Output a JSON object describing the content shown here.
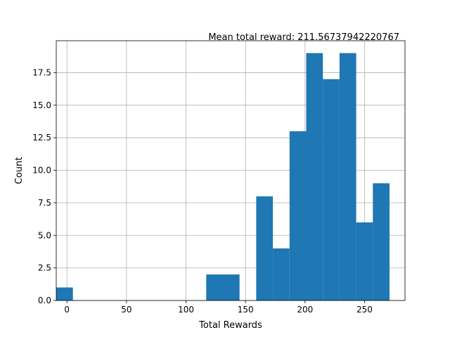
{
  "chart_data": {
    "type": "bar",
    "title": "Mean total reward: 211.56737942220767",
    "xlabel": "Total Rewards",
    "ylabel": "Count",
    "xlim": [
      -9.0,
      284.0
    ],
    "ylim": [
      0,
      19.95
    ],
    "xticks": [
      0,
      50,
      100,
      150,
      200,
      250
    ],
    "yticks": [
      0.0,
      2.5,
      5.0,
      7.5,
      10.0,
      12.5,
      15.0,
      17.5
    ],
    "grid": true,
    "bar_color": "#1f77b4",
    "bins": [
      {
        "x0": -9.0,
        "x1": 5.0,
        "count": 1
      },
      {
        "x0": 5.0,
        "x1": 19.0,
        "count": 0
      },
      {
        "x0": 19.0,
        "x1": 33.0,
        "count": 0
      },
      {
        "x0": 33.0,
        "x1": 47.0,
        "count": 0
      },
      {
        "x0": 47.0,
        "x1": 61.0,
        "count": 0
      },
      {
        "x0": 61.0,
        "x1": 75.0,
        "count": 0
      },
      {
        "x0": 75.0,
        "x1": 89.0,
        "count": 0
      },
      {
        "x0": 89.0,
        "x1": 103.0,
        "count": 0
      },
      {
        "x0": 103.0,
        "x1": 117.0,
        "count": 0
      },
      {
        "x0": 117.0,
        "x1": 131.0,
        "count": 2
      },
      {
        "x0": 131.0,
        "x1": 145.0,
        "count": 2
      },
      {
        "x0": 145.0,
        "x1": 159.0,
        "count": 0
      },
      {
        "x0": 159.0,
        "x1": 173.0,
        "count": 8
      },
      {
        "x0": 173.0,
        "x1": 187.0,
        "count": 4
      },
      {
        "x0": 187.0,
        "x1": 201.0,
        "count": 13
      },
      {
        "x0": 201.0,
        "x1": 215.0,
        "count": 19
      },
      {
        "x0": 215.0,
        "x1": 229.0,
        "count": 17
      },
      {
        "x0": 229.0,
        "x1": 243.0,
        "count": 19
      },
      {
        "x0": 243.0,
        "x1": 257.0,
        "count": 6
      },
      {
        "x0": 257.0,
        "x1": 271.0,
        "count": 9
      }
    ]
  }
}
